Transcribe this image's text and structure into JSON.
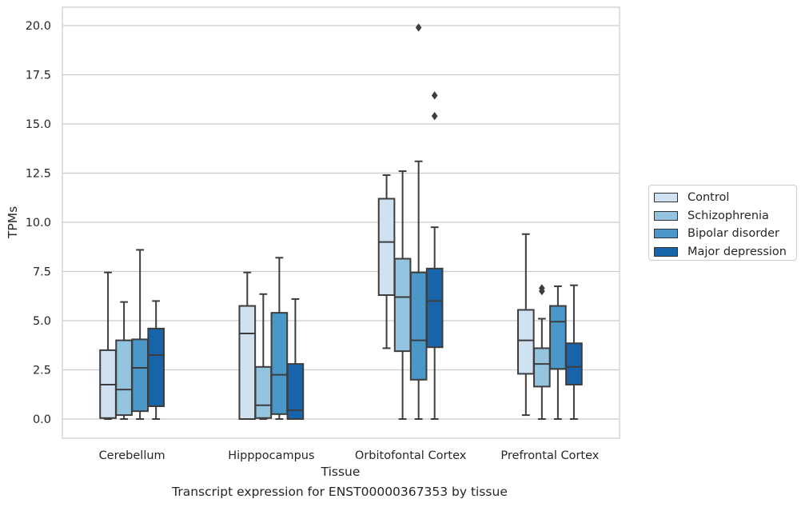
{
  "chart_data": {
    "type": "box",
    "xlabel": "Tissue",
    "ylabel": "TPMs",
    "caption": "Transcript expression for ENST00000367353 by tissue",
    "ylim": [
      -1,
      20.9
    ],
    "yticks": [
      0.0,
      2.5,
      5.0,
      7.5,
      10.0,
      12.5,
      15.0,
      17.5,
      20.0
    ],
    "ytick_labels": [
      "0.0",
      "2.5",
      "5.0",
      "7.5",
      "10.0",
      "12.5",
      "15.0",
      "17.5",
      "20.0"
    ],
    "grid": true,
    "legend_position": "right",
    "categories": [
      "Cerebellum",
      "Hipppocampus",
      "Orbitofontal Cortex",
      "Prefrontal Cortex"
    ],
    "series": [
      {
        "name": "Control",
        "color": "#d0e1f2",
        "boxes": [
          {
            "whislo": 0.0,
            "q1": 0.05,
            "med": 1.75,
            "q3": 3.5,
            "whishi": 7.45,
            "fliers": []
          },
          {
            "whislo": 0.0,
            "q1": 0.0,
            "med": 4.35,
            "q3": 5.75,
            "whishi": 7.45,
            "fliers": []
          },
          {
            "whislo": 3.6,
            "q1": 6.3,
            "med": 9.0,
            "q3": 11.2,
            "whishi": 12.4,
            "fliers": []
          },
          {
            "whislo": 0.2,
            "q1": 2.3,
            "med": 4.0,
            "q3": 5.55,
            "whishi": 9.4,
            "fliers": []
          }
        ]
      },
      {
        "name": "Schizophrenia",
        "color": "#94c4df",
        "boxes": [
          {
            "whislo": 0.0,
            "q1": 0.2,
            "med": 1.5,
            "q3": 4.0,
            "whishi": 5.95,
            "fliers": []
          },
          {
            "whislo": 0.0,
            "q1": 0.05,
            "med": 0.7,
            "q3": 2.65,
            "whishi": 6.35,
            "fliers": []
          },
          {
            "whislo": 0.0,
            "q1": 3.45,
            "med": 6.2,
            "q3": 8.15,
            "whishi": 12.6,
            "fliers": []
          },
          {
            "whislo": 0.0,
            "q1": 1.65,
            "med": 2.8,
            "q3": 3.6,
            "whishi": 5.1,
            "fliers": [
              6.5,
              6.65
            ]
          }
        ]
      },
      {
        "name": "Bipolar disorder",
        "color": "#4a98c9",
        "boxes": [
          {
            "whislo": 0.0,
            "q1": 0.4,
            "med": 2.6,
            "q3": 4.05,
            "whishi": 8.6,
            "fliers": []
          },
          {
            "whislo": 0.0,
            "q1": 0.25,
            "med": 2.25,
            "q3": 5.4,
            "whishi": 8.2,
            "fliers": []
          },
          {
            "whislo": 0.0,
            "q1": 2.0,
            "med": 4.0,
            "q3": 7.45,
            "whishi": 13.1,
            "fliers": [
              19.9
            ]
          },
          {
            "whislo": 0.0,
            "q1": 2.55,
            "med": 4.95,
            "q3": 5.75,
            "whishi": 6.75,
            "fliers": []
          }
        ]
      },
      {
        "name": "Major depression",
        "color": "#1764ab",
        "boxes": [
          {
            "whislo": 0.0,
            "q1": 0.65,
            "med": 3.25,
            "q3": 4.6,
            "whishi": 6.0,
            "fliers": []
          },
          {
            "whislo": 0.0,
            "q1": 0.0,
            "med": 0.45,
            "q3": 2.8,
            "whishi": 6.1,
            "fliers": []
          },
          {
            "whislo": 0.0,
            "q1": 3.65,
            "med": 6.0,
            "q3": 7.65,
            "whishi": 9.75,
            "fliers": [
              15.4,
              16.45
            ]
          },
          {
            "whislo": 0.0,
            "q1": 1.75,
            "med": 2.65,
            "q3": 3.85,
            "whishi": 6.8,
            "fliers": []
          }
        ]
      }
    ]
  }
}
